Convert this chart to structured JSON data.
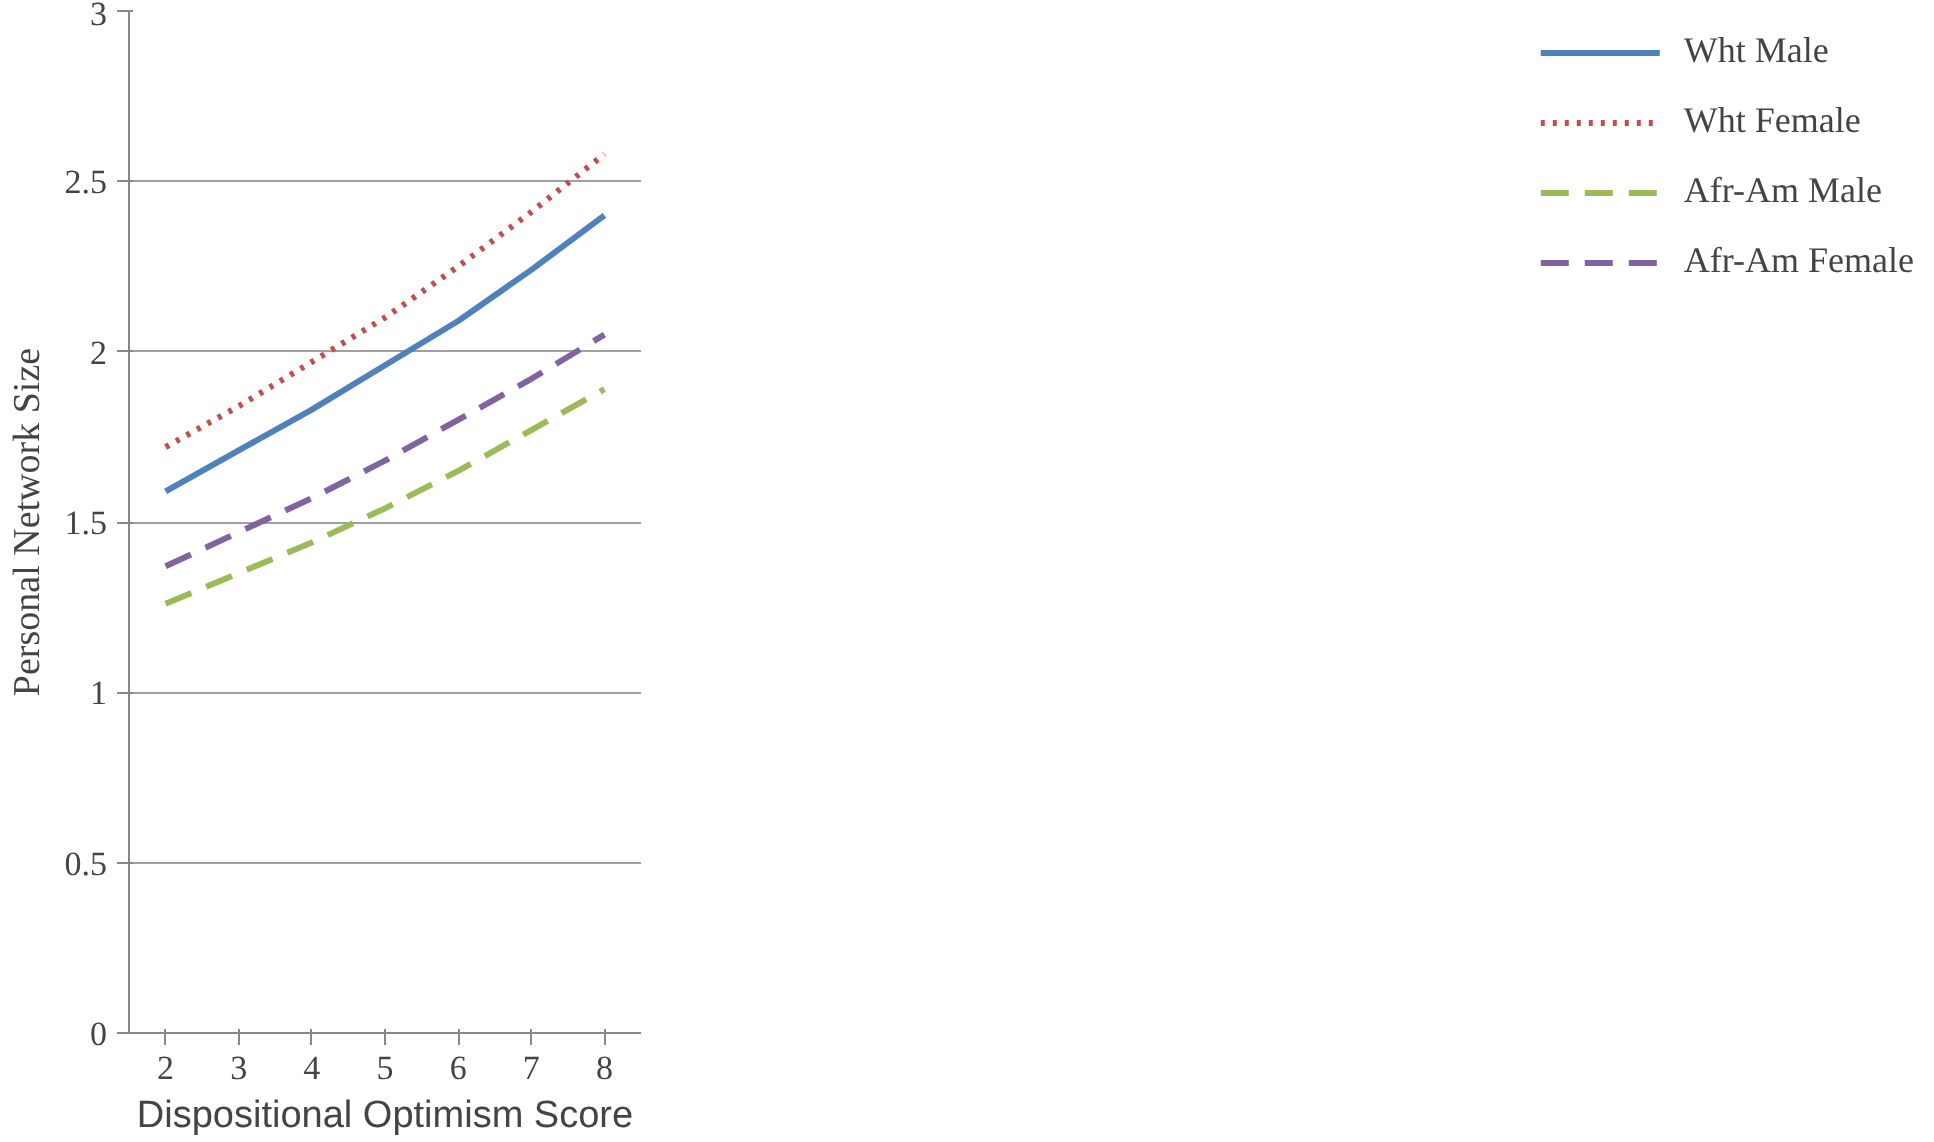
{
  "chart_data": {
    "type": "line",
    "xlabel": "Dispositional Optimism Score",
    "ylabel": "Personal Network Size",
    "x": [
      2,
      3,
      4,
      5,
      6,
      7,
      8
    ],
    "xlim": [
      1.5,
      8.5
    ],
    "xticks": [
      2,
      3,
      4,
      5,
      6,
      7,
      8
    ],
    "ylim": [
      0,
      3
    ],
    "yticks": [
      0,
      0.5,
      1,
      1.5,
      2,
      2.5,
      3
    ],
    "grid": "y",
    "legend": "right",
    "marker": "none",
    "series": [
      {
        "name": "Wht Male",
        "color": "#4f81bd",
        "line_style": "solid",
        "values": [
          1.59,
          1.71,
          1.83,
          1.96,
          2.09,
          2.24,
          2.4
        ]
      },
      {
        "name": "Wht Female",
        "color": "#c0504d",
        "line_style": "dotted",
        "values": [
          1.72,
          1.84,
          1.97,
          2.1,
          2.25,
          2.41,
          2.58
        ]
      },
      {
        "name": "Afr-Am Male",
        "color": "#9bbb59",
        "line_style": "dashed",
        "values": [
          1.26,
          1.35,
          1.44,
          1.54,
          1.65,
          1.77,
          1.89
        ]
      },
      {
        "name": "Afr-Am Female",
        "color": "#8064a2",
        "line_style": "dashed",
        "values": [
          1.37,
          1.47,
          1.57,
          1.68,
          1.8,
          1.92,
          2.05
        ]
      }
    ]
  }
}
